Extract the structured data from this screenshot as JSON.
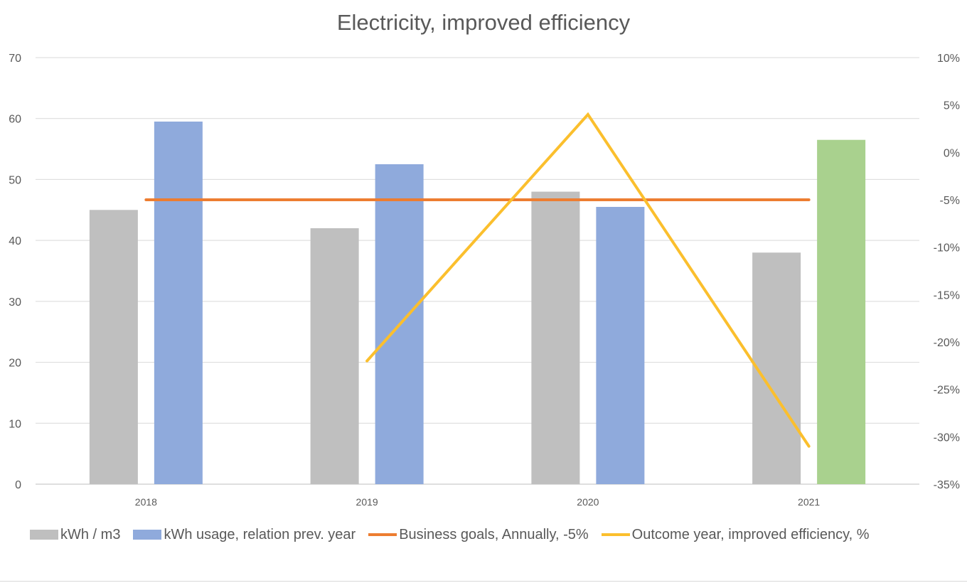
{
  "chart_data": {
    "type": "bar",
    "title": "Electricity, improved efficiency",
    "categories": [
      "2018",
      "2019",
      "2020",
      "2021"
    ],
    "series": [
      {
        "name": "kWh / m3",
        "kind": "bar",
        "axis": "left",
        "color": "#bfbfbf",
        "values": [
          45,
          42,
          48,
          38
        ]
      },
      {
        "name": "kWh usage, relation prev. year",
        "kind": "bar",
        "axis": "left",
        "color": "#8faadc",
        "point_colors": [
          "#8faadc",
          "#8faadc",
          "#8faadc",
          "#a9d18e"
        ],
        "values": [
          59.5,
          52.5,
          45.5,
          56.5
        ]
      },
      {
        "name": "Business goals, Annually, -5%",
        "kind": "line",
        "axis": "right",
        "color": "#ed7d31",
        "values": [
          -5,
          -5,
          -5,
          -5
        ]
      },
      {
        "name": "Outcome year, improved efficiency, %",
        "kind": "line",
        "axis": "right",
        "color": "#fbbf2d",
        "values": [
          null,
          -22,
          4,
          -31
        ]
      }
    ],
    "y_left": {
      "min": 0,
      "max": 70,
      "step": 10,
      "ticks": [
        "0",
        "10",
        "20",
        "30",
        "40",
        "50",
        "60",
        "70"
      ]
    },
    "y_right": {
      "min": -35,
      "max": 10,
      "step": 5,
      "ticks": [
        "-35%",
        "-30%",
        "-25%",
        "-20%",
        "-15%",
        "-10%",
        "-5%",
        "0%",
        "5%",
        "10%"
      ]
    },
    "grid": true,
    "legend_position": "bottom"
  }
}
